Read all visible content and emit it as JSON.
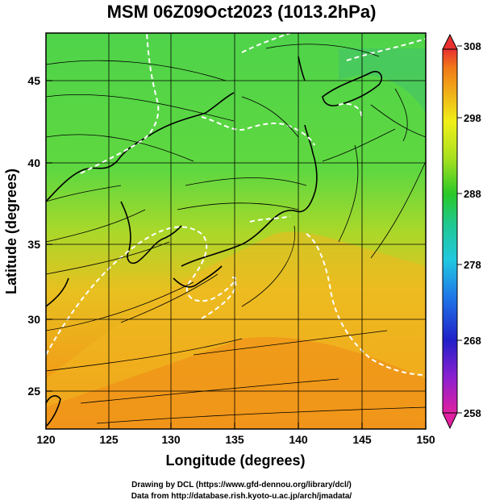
{
  "title": "MSM 06Z09Oct2023 (1013.2hPa)",
  "map": {
    "xlabel": "Longitude (degrees)",
    "ylabel": "Latitude  (degrees)",
    "xlim": [
      120,
      150
    ],
    "ylim": [
      22.5,
      47.6
    ],
    "x_ticks": [
      "120",
      "125",
      "130",
      "135",
      "140",
      "145",
      "150"
    ],
    "y_ticks": [
      "25",
      "30",
      "35",
      "40",
      "45"
    ],
    "grid": true
  },
  "colorbar": {
    "labels": [
      "308",
      "298",
      "288",
      "278",
      "268",
      "258"
    ],
    "min": 258,
    "max": 308,
    "colors": [
      "#e0209f",
      "#7a1fd0",
      "#2020c8",
      "#1f6fe0",
      "#20c8e0",
      "#20c890",
      "#28c828",
      "#a8e020",
      "#f0f018",
      "#f0b018",
      "#f07818",
      "#e83030"
    ]
  },
  "credits": {
    "line1": "Drawing by DCL (https://www.gfd-dennou.org/library/dcl/)",
    "line2": "Data from http://database.rish.kyoto-u.ac.jp/arch/jmadata/"
  }
}
